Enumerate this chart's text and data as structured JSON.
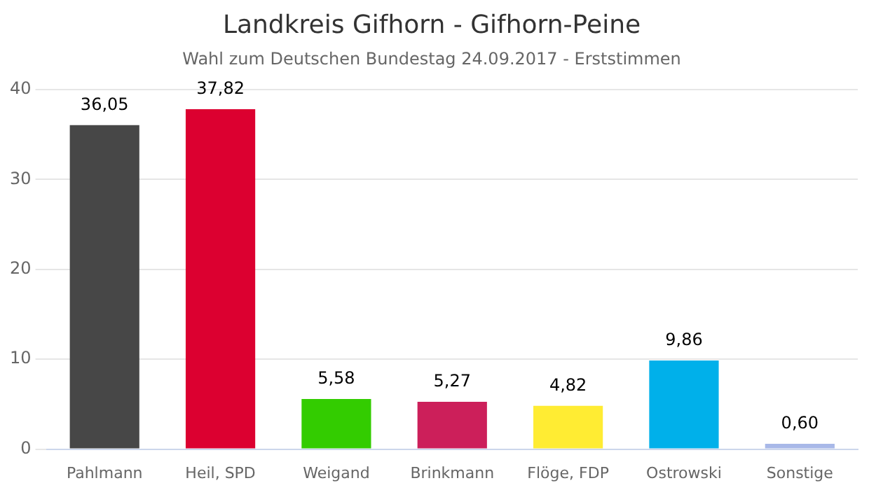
{
  "chart_data": {
    "type": "bar",
    "title": "Landkreis Gifhorn - Gifhorn-Peine",
    "subtitle": "Wahl zum Deutschen Bundestag 24.09.2017 - Erststimmen",
    "categories": [
      "Pahlmann",
      "Heil, SPD",
      "Weigand",
      "Brinkmann",
      "Flöge, FDP",
      "Ostrowski",
      "Sonstige"
    ],
    "values": [
      36.05,
      37.82,
      5.58,
      5.27,
      4.82,
      9.86,
      0.6
    ],
    "value_labels": [
      "36,05",
      "37,82",
      "5,58",
      "5,27",
      "4,82",
      "9,86",
      "0,60"
    ],
    "colors": [
      "#474747",
      "#dc0030",
      "#33cc00",
      "#cc1f5a",
      "#ffec33",
      "#00b0ea",
      "#a8b8e8"
    ],
    "ylim": [
      0,
      40
    ],
    "yticks": [
      0,
      10,
      20,
      30,
      40
    ],
    "grid": "y",
    "legend": false
  }
}
